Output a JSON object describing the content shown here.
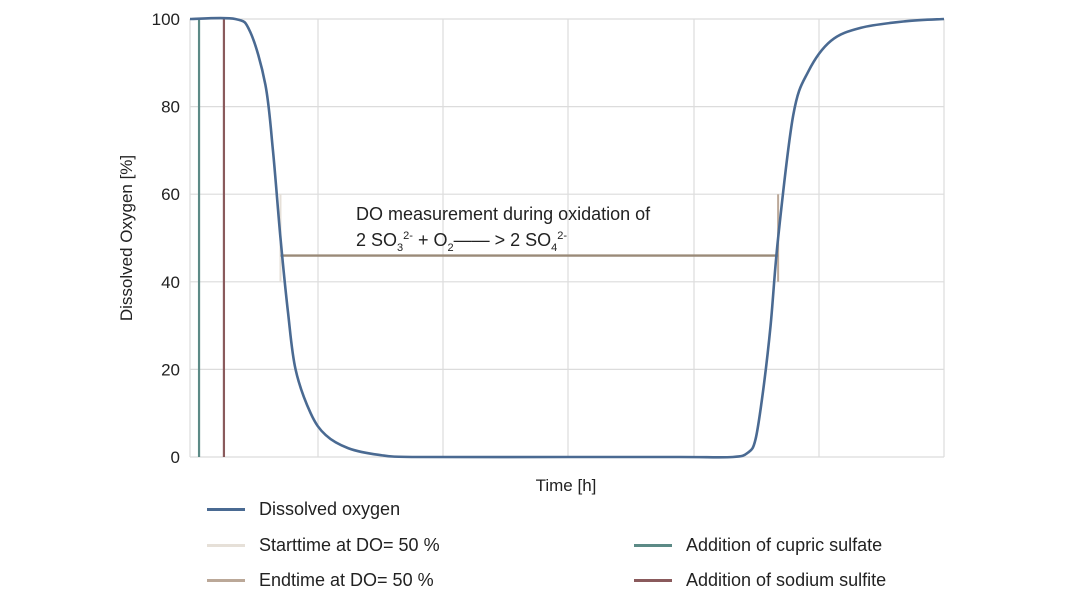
{
  "chart_data": {
    "type": "line",
    "xlabel": "Time [h]",
    "ylabel": "Dissolved Oxygen [%]",
    "ylim": [
      0,
      100
    ],
    "yticks": [
      0,
      20,
      40,
      60,
      80,
      100
    ],
    "xticks_labels_shown": false,
    "grid": true,
    "series": [
      {
        "name": "Dissolved oxygen",
        "color": "#4a6a92",
        "x": [
          0,
          0.06,
          0.08,
          0.1,
          0.11,
          0.12,
          0.13,
          0.14,
          0.16,
          0.18,
          0.21,
          0.25,
          0.3,
          0.5,
          0.65,
          0.72,
          0.74,
          0.75,
          0.76,
          0.77,
          0.78,
          0.8,
          0.82,
          0.85,
          0.89,
          0.95,
          1.0
        ],
        "y": [
          100,
          100,
          97,
          85,
          70,
          50,
          33,
          20,
          10,
          5,
          2,
          0.5,
          0,
          0,
          0,
          0,
          1,
          4,
          15,
          30,
          50,
          78,
          88,
          95,
          98,
          99.5,
          100
        ]
      }
    ],
    "markers": [
      {
        "name": "Starttime at DO= 50 %",
        "color": "#e6e0d8",
        "x": 0.12,
        "y_range": [
          40,
          60
        ]
      },
      {
        "name": "Endtime at DO= 50 %",
        "color": "#bba898",
        "x": 0.78,
        "y_range": [
          40,
          60
        ]
      },
      {
        "name": "Addition of cupric sulfate",
        "color": "#5c8a86",
        "x": 0.012
      },
      {
        "name": "Addition of sodium sulfite",
        "color": "#8a5a5c",
        "x": 0.045
      }
    ],
    "span": {
      "y": 46,
      "x_start": 0.12,
      "x_end": 0.78,
      "color": "#9a8a78"
    },
    "annotation": {
      "line1": "DO measurement during oxidation of",
      "eq": {
        "a": "2 SO",
        "a_sub": "3",
        "a_sup": "2-",
        "b": " + O",
        "b_sub": "2",
        "arrow": "—— >",
        "c": " 2 SO",
        "c_sub": "4",
        "c_sup": "2-"
      }
    },
    "legend": {
      "placement": "bottom",
      "entries": [
        {
          "label": "Dissolved oxygen",
          "color": "#4a6a92"
        },
        {
          "label": "Starttime at DO= 50 %",
          "color": "#e6e0d8"
        },
        {
          "label": "Endtime at DO= 50 %",
          "color": "#bba898"
        },
        {
          "label": "Addition of cupric sulfate",
          "color": "#5c8a86"
        },
        {
          "label": "Addition of sodium sulfite",
          "color": "#8a5a5c"
        }
      ]
    }
  }
}
